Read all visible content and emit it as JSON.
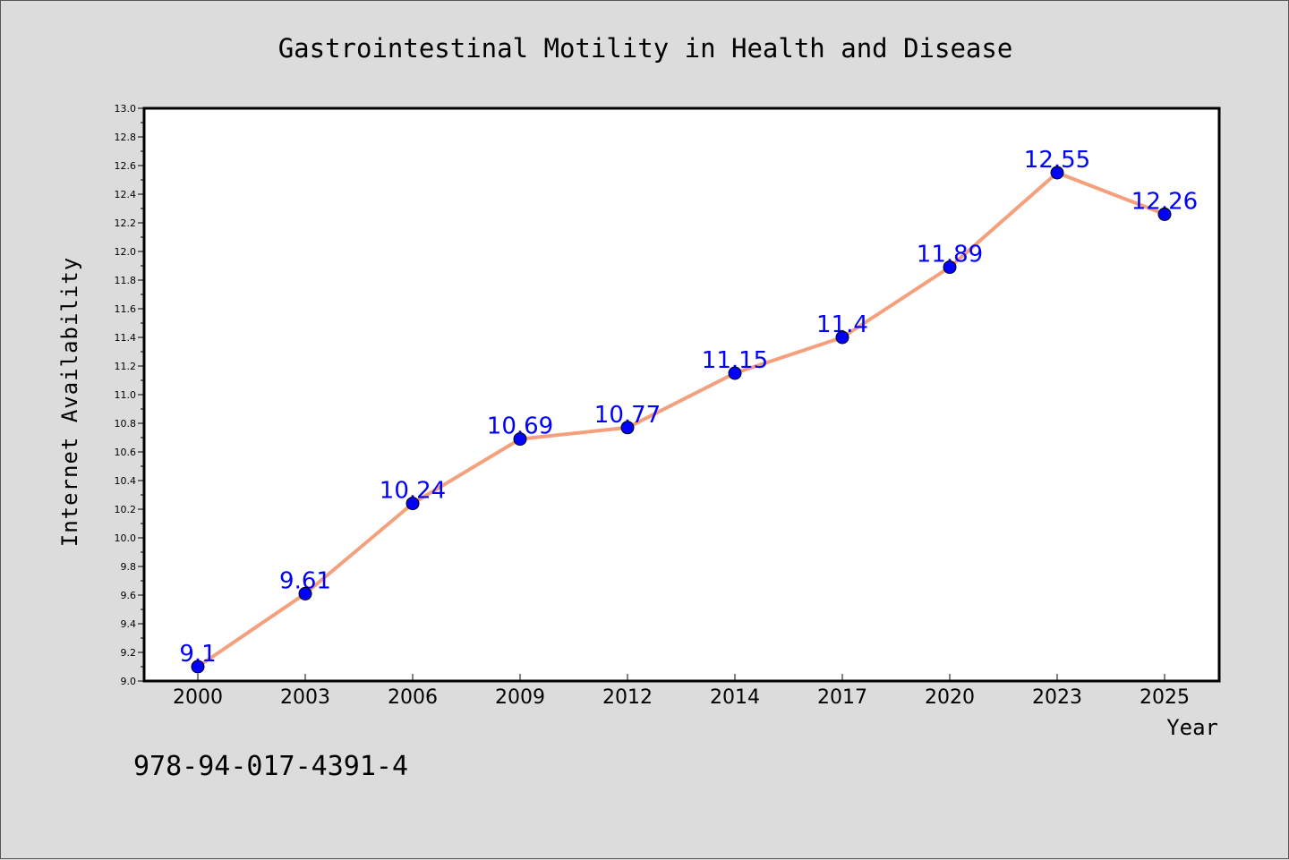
{
  "chart_data": {
    "type": "line",
    "title": "Gastrointestinal Motility in Health and Disease",
    "xlabel": "Year",
    "ylabel": "Internet Availability",
    "categories": [
      "2000",
      "2003",
      "2006",
      "2009",
      "2012",
      "2014",
      "2017",
      "2020",
      "2023",
      "2025"
    ],
    "series": [
      {
        "values": [
          9.1,
          9.61,
          10.24,
          10.69,
          10.77,
          11.15,
          11.4,
          11.89,
          12.55,
          12.26
        ],
        "data_labels": [
          "9.1",
          "9.61",
          "10.24",
          "10.69",
          "10.77",
          "11.15",
          "11.4",
          "11.89",
          "12.55",
          "12.26"
        ],
        "line_color": "#f4a07c",
        "marker_color": "#0000ff"
      }
    ],
    "ylim": [
      9.0,
      13.0
    ],
    "yticks": [
      "9.0",
      "9.2",
      "9.4",
      "9.6",
      "9.8",
      "10.0",
      "10.2",
      "10.4",
      "10.6",
      "10.8",
      "11.0",
      "11.2",
      "11.4",
      "11.6",
      "11.8",
      "12.0",
      "12.2",
      "12.4",
      "12.6",
      "12.8",
      "13.0"
    ],
    "grid": false,
    "legend": "none"
  },
  "footer_text": "978-94-017-4391-4",
  "colors": {
    "background": "#dcdcdc",
    "plot_background": "#ffffff",
    "label_color": "#0000ff"
  }
}
